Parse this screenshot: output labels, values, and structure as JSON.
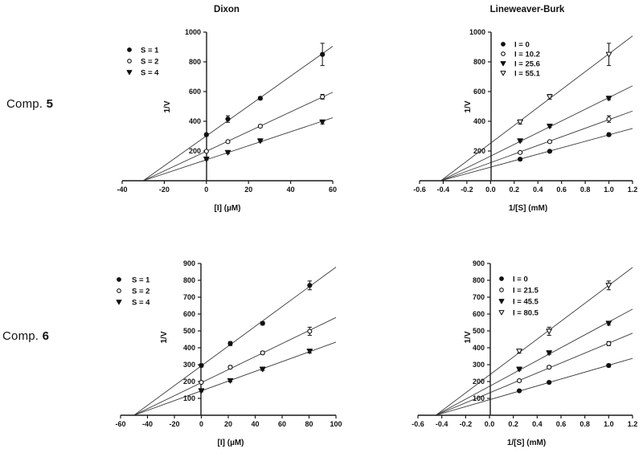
{
  "figure": {
    "background": "#ffffff",
    "text_color": "#111111",
    "axis_color": "#1a1a1a",
    "fit_line_color": "#3c3c3c",
    "row_labels": [
      {
        "prefix": "Comp. ",
        "number": "5"
      },
      {
        "prefix": "Comp. ",
        "number": "6"
      }
    ],
    "column_titles": [
      "Dixon",
      "Lineweaver-Burk"
    ]
  },
  "chart_data": [
    {
      "type": "scatter",
      "id": "comp5-dixon",
      "title": "Dixon",
      "xlabel": "[I] (µM)",
      "ylabel": "1/V",
      "xlim": [
        -40,
        60
      ],
      "ylim": [
        0,
        1000
      ],
      "xtick_values": [
        -40,
        -20,
        0,
        20,
        40,
        60
      ],
      "xtick_labels": [
        "-40",
        "-20",
        "0",
        "20",
        "40",
        "60"
      ],
      "ytick_values": [
        200,
        400,
        600,
        800,
        1000
      ],
      "ytick_labels": [
        "200",
        "400",
        "600",
        "800",
        "1000"
      ],
      "grid": false,
      "legend_position": "outside-upper-left",
      "convergence_x": -30,
      "series": [
        {
          "name": "S = 1",
          "marker": "filled-circle",
          "x": [
            0,
            10.2,
            25.6,
            55.1
          ],
          "y": [
            310,
            415,
            555,
            850
          ],
          "yerr": [
            10,
            22,
            10,
            75
          ]
        },
        {
          "name": "S = 2",
          "marker": "open-circle",
          "x": [
            0,
            10.2,
            25.6,
            55.1
          ],
          "y": [
            198,
            263,
            367,
            565
          ],
          "yerr": [
            7,
            7,
            9,
            16
          ]
        },
        {
          "name": "S = 4",
          "marker": "filled-triangle",
          "x": [
            0,
            10.2,
            25.6,
            55.1
          ],
          "y": [
            145,
            190,
            268,
            395
          ],
          "yerr": [
            6,
            7,
            7,
            13
          ]
        }
      ]
    },
    {
      "type": "scatter",
      "id": "comp5-lineweaver-burk",
      "title": "Lineweaver-Burk",
      "xlabel": "1/[S] (mM)",
      "ylabel": "1/V",
      "xlim": [
        -0.6,
        1.2
      ],
      "ylim": [
        0,
        1000
      ],
      "xtick_values": [
        -0.6,
        -0.4,
        -0.2,
        0.0,
        0.2,
        0.4,
        0.6,
        0.8,
        1.0,
        1.2
      ],
      "xtick_labels": [
        "-0.6",
        "-0.4",
        "-0.2",
        "0.0",
        "0.2",
        "0.4",
        "0.6",
        "0.8",
        "1.0",
        "1.2"
      ],
      "ytick_values": [
        200,
        400,
        600,
        800,
        1000
      ],
      "ytick_labels": [
        "200",
        "400",
        "600",
        "800",
        "1000"
      ],
      "grid": false,
      "legend_position": "inside-upper-left",
      "convergence_x": -0.42,
      "series": [
        {
          "name": "I = 0",
          "marker": "filled-circle",
          "x": [
            0.25,
            0.5,
            1.0
          ],
          "y": [
            145,
            198,
            310
          ],
          "yerr": [
            6,
            7,
            10
          ]
        },
        {
          "name": "I = 10.2",
          "marker": "open-circle",
          "x": [
            0.25,
            0.5,
            1.0
          ],
          "y": [
            190,
            263,
            415
          ],
          "yerr": [
            7,
            7,
            22
          ]
        },
        {
          "name": "I = 25.6",
          "marker": "filled-triangle",
          "x": [
            0.25,
            0.5,
            1.0
          ],
          "y": [
            268,
            367,
            555
          ],
          "yerr": [
            7,
            9,
            10
          ]
        },
        {
          "name": "I = 55.1",
          "marker": "open-triangle",
          "x": [
            0.25,
            0.5,
            1.0
          ],
          "y": [
            395,
            565,
            850
          ],
          "yerr": [
            13,
            16,
            75
          ]
        }
      ]
    },
    {
      "type": "scatter",
      "id": "comp6-dixon",
      "title": "",
      "xlabel": "[I] (µM)",
      "ylabel": "1/V",
      "xlim": [
        -60,
        100
      ],
      "ylim": [
        0,
        900
      ],
      "xtick_values": [
        -60,
        -40,
        -20,
        0,
        20,
        40,
        60,
        80,
        100
      ],
      "xtick_labels": [
        "-60",
        "-40",
        "-20",
        "0",
        "20",
        "40",
        "60",
        "80",
        "100"
      ],
      "ytick_values": [
        100,
        200,
        300,
        400,
        500,
        600,
        700,
        800,
        900
      ],
      "ytick_labels": [
        "100",
        "200",
        "300",
        "400",
        "500",
        "600",
        "700",
        "800",
        "900"
      ],
      "grid": false,
      "legend_position": "outside-upper-left",
      "convergence_x": -50,
      "series": [
        {
          "name": "S = 1",
          "marker": "filled-circle",
          "x": [
            0,
            21.5,
            45.5,
            80.5
          ],
          "y": [
            295,
            425,
            545,
            770
          ],
          "yerr": [
            9,
            12,
            10,
            26
          ]
        },
        {
          "name": "S = 2",
          "marker": "open-circle",
          "x": [
            0,
            21.5,
            45.5,
            80.5
          ],
          "y": [
            195,
            285,
            370,
            498
          ],
          "yerr": [
            7,
            9,
            9,
            24
          ]
        },
        {
          "name": "S = 4",
          "marker": "filled-triangle",
          "x": [
            0,
            21.5,
            45.5,
            80.5
          ],
          "y": [
            145,
            205,
            273,
            380
          ],
          "yerr": [
            6,
            7,
            7,
            11
          ]
        }
      ]
    },
    {
      "type": "scatter",
      "id": "comp6-lineweaver-burk",
      "title": "",
      "xlabel": "1/[S] (mM)",
      "ylabel": "1/V",
      "xlim": [
        -0.6,
        1.2
      ],
      "ylim": [
        0,
        900
      ],
      "xtick_values": [
        -0.6,
        -0.4,
        -0.2,
        0.0,
        0.2,
        0.4,
        0.6,
        0.8,
        1.0,
        1.2
      ],
      "xtick_labels": [
        "-0.6",
        "-0.4",
        "-0.2",
        "0.0",
        "0.2",
        "0.4",
        "0.6",
        "0.8",
        "1.0",
        "1.2"
      ],
      "ytick_values": [
        100,
        200,
        300,
        400,
        500,
        600,
        700,
        800,
        900
      ],
      "ytick_labels": [
        "100",
        "200",
        "300",
        "400",
        "500",
        "600",
        "700",
        "800",
        "900"
      ],
      "grid": false,
      "legend_position": "inside-upper-left",
      "convergence_x": -0.45,
      "series": [
        {
          "name": "I = 0",
          "marker": "filled-circle",
          "x": [
            0.25,
            0.5,
            1.0
          ],
          "y": [
            145,
            195,
            295
          ],
          "yerr": [
            6,
            7,
            9
          ]
        },
        {
          "name": "I = 21.5",
          "marker": "open-circle",
          "x": [
            0.25,
            0.5,
            1.0
          ],
          "y": [
            205,
            285,
            425
          ],
          "yerr": [
            7,
            9,
            12
          ]
        },
        {
          "name": "I = 45.5",
          "marker": "filled-triangle",
          "x": [
            0.25,
            0.5,
            1.0
          ],
          "y": [
            273,
            370,
            545
          ],
          "yerr": [
            7,
            9,
            10
          ]
        },
        {
          "name": "I = 80.5",
          "marker": "open-triangle",
          "x": [
            0.25,
            0.5,
            1.0
          ],
          "y": [
            380,
            498,
            770
          ],
          "yerr": [
            11,
            24,
            26
          ]
        }
      ]
    }
  ]
}
